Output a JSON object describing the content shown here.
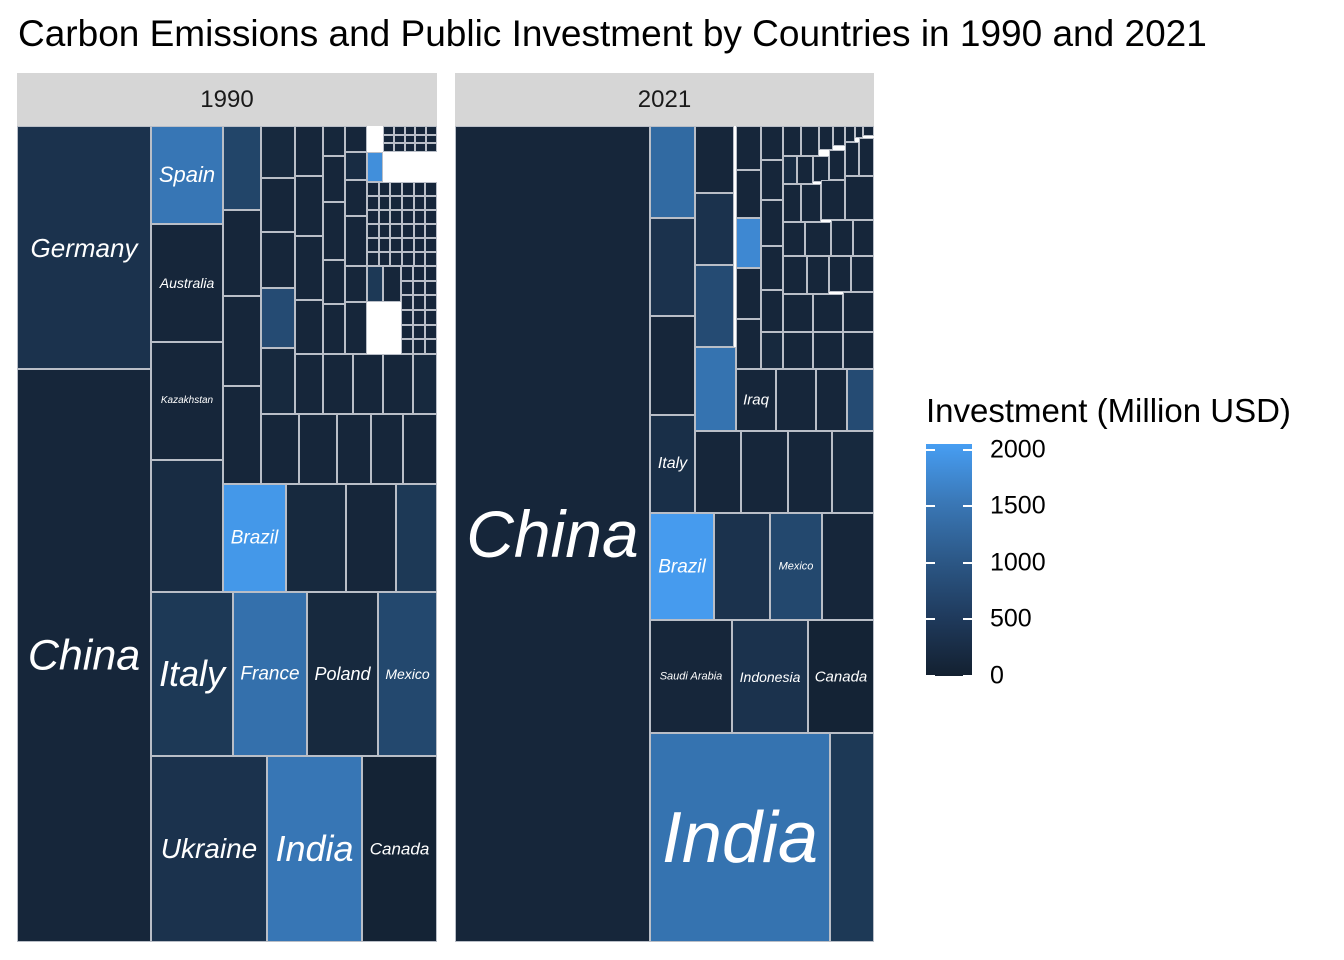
{
  "chart_data": {
    "type": "treemap",
    "title": "Carbon Emissions and Public Investment by Countries in 1990 and 2021",
    "size_variable": "Carbon Emissions",
    "fill_variable": "Investment (Million USD)",
    "panels": [
      {
        "strip": "1990",
        "tiles": [
          {
            "label": "China",
            "investment": 100
          },
          {
            "label": "Germany",
            "investment": 300
          },
          {
            "label": "Spain",
            "investment": 1400
          },
          {
            "label": "Australia",
            "investment": 100
          },
          {
            "label": "Kazakhstan",
            "investment": 100
          },
          {
            "label": "Italy",
            "investment": 400
          },
          {
            "label": "France",
            "investment": 1300
          },
          {
            "label": "Poland",
            "investment": 150
          },
          {
            "label": "Mexico",
            "investment": 650
          },
          {
            "label": "Ukraine",
            "investment": 300
          },
          {
            "label": "India",
            "investment": 1400
          },
          {
            "label": "Canada",
            "investment": 50
          },
          {
            "label": "Brazil",
            "investment": 1950
          }
        ]
      },
      {
        "strip": "2021",
        "tiles": [
          {
            "label": "China",
            "investment": 100
          },
          {
            "label": "India",
            "investment": 1350
          },
          {
            "label": "Brazil",
            "investment": 2000
          },
          {
            "label": "Mexico",
            "investment": 650
          },
          {
            "label": "Italy",
            "investment": 250
          },
          {
            "label": "Iraq",
            "investment": 100
          },
          {
            "label": "Saudi Arabia",
            "investment": 100
          },
          {
            "label": "Indonesia",
            "investment": 300
          },
          {
            "label": "Canada",
            "investment": 50
          }
        ]
      }
    ],
    "legend": {
      "title": "Investment (Million USD)",
      "ticks": [
        0,
        500,
        1000,
        1500,
        2000
      ],
      "range": [
        0,
        2050
      ],
      "colors": [
        "#132030",
        "#479ef3"
      ]
    }
  }
}
